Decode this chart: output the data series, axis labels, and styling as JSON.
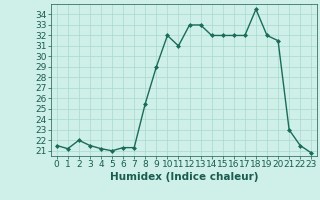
{
  "x": [
    0,
    1,
    2,
    3,
    4,
    5,
    6,
    7,
    8,
    9,
    10,
    11,
    12,
    13,
    14,
    15,
    16,
    17,
    18,
    19,
    20,
    21,
    22,
    23
  ],
  "y": [
    21.5,
    21.2,
    22.0,
    21.5,
    21.2,
    21.0,
    21.3,
    21.3,
    25.5,
    29.0,
    32.0,
    31.0,
    33.0,
    33.0,
    32.0,
    32.0,
    32.0,
    32.0,
    34.5,
    32.0,
    31.5,
    23.0,
    21.5,
    20.8
  ],
  "line_color": "#1a6b5a",
  "marker": "D",
  "marker_size": 2.0,
  "xlabel": "Humidex (Indice chaleur)",
  "xlim": [
    -0.5,
    23.5
  ],
  "ylim": [
    20.5,
    35.0
  ],
  "yticks": [
    21,
    22,
    23,
    24,
    25,
    26,
    27,
    28,
    29,
    30,
    31,
    32,
    33,
    34
  ],
  "xticks": [
    0,
    1,
    2,
    3,
    4,
    5,
    6,
    7,
    8,
    9,
    10,
    11,
    12,
    13,
    14,
    15,
    16,
    17,
    18,
    19,
    20,
    21,
    22,
    23
  ],
  "bg_color": "#cef0e8",
  "grid_color": "#aad8ce",
  "text_color": "#1a5c50",
  "tick_font_size": 6.5,
  "xlabel_font_size": 7.5,
  "linewidth": 1.0
}
